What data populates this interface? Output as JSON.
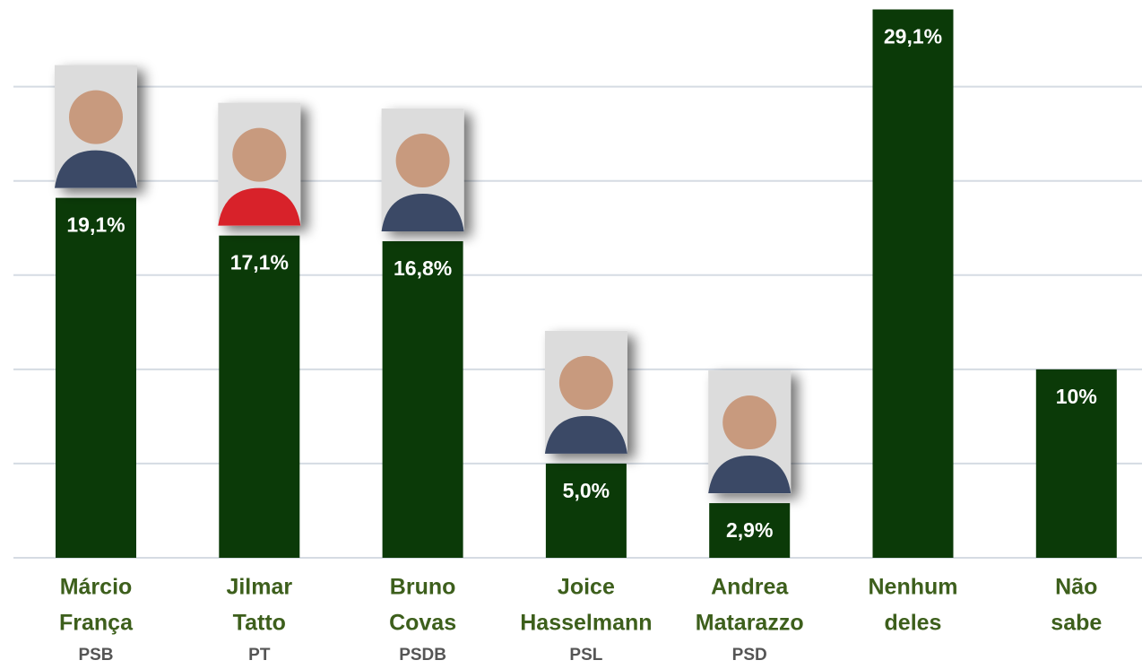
{
  "chart_data": {
    "type": "bar",
    "categories": [
      [
        "Márcio",
        "França"
      ],
      [
        "Jilmar",
        "Tatto"
      ],
      [
        "Bruno",
        "Covas"
      ],
      [
        "Joice",
        "Hasselmann"
      ],
      [
        "Andrea",
        "Matarazzo"
      ],
      [
        "Nenhum",
        "deles"
      ],
      [
        "Não",
        "sabe"
      ]
    ],
    "parties": [
      "PSB",
      "PT",
      "PSDB",
      "PSL",
      "PSD",
      null,
      null
    ],
    "values": [
      19.1,
      17.1,
      16.8,
      5.0,
      2.9,
      29.1,
      10
    ],
    "value_labels": [
      "19,1%",
      "17,1%",
      "16,8%",
      "5,0%",
      "2,9%",
      "29,1%",
      "10%"
    ],
    "color": "#0b3a08",
    "ylim": [
      0,
      29.6
    ],
    "yticks": [
      0,
      5,
      10,
      15,
      20,
      25
    ],
    "grid": true
  }
}
